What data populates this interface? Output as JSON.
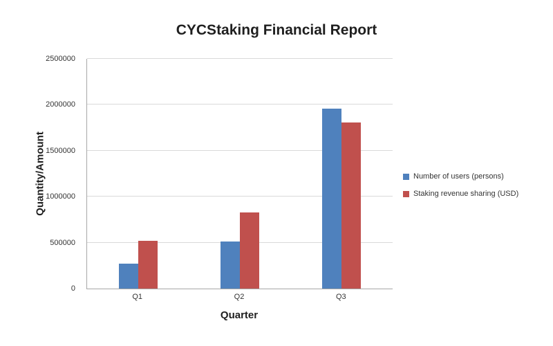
{
  "chart_data": {
    "type": "bar",
    "title": "CYCStaking Financial Report",
    "xlabel": "Quarter",
    "ylabel": "Quantity/Amount",
    "categories": [
      "Q1",
      "Q2",
      "Q3"
    ],
    "series": [
      {
        "name": "Number of users (persons)",
        "color": "#4F81BD",
        "values": [
          270000,
          510000,
          1960000
        ]
      },
      {
        "name": "Staking revenue sharing (USD)",
        "color": "#C0504D",
        "values": [
          520000,
          830000,
          1810000
        ]
      }
    ],
    "ylim": [
      0,
      2500000
    ],
    "ytick_step": 500000,
    "ytick_labels": [
      "0",
      "500000",
      "1000000",
      "1500000",
      "2000000",
      "2500000"
    ],
    "grid": true,
    "legend_position": "right",
    "gridline_color": "#D9D9D9",
    "axis_color": "#A6A6A6"
  }
}
